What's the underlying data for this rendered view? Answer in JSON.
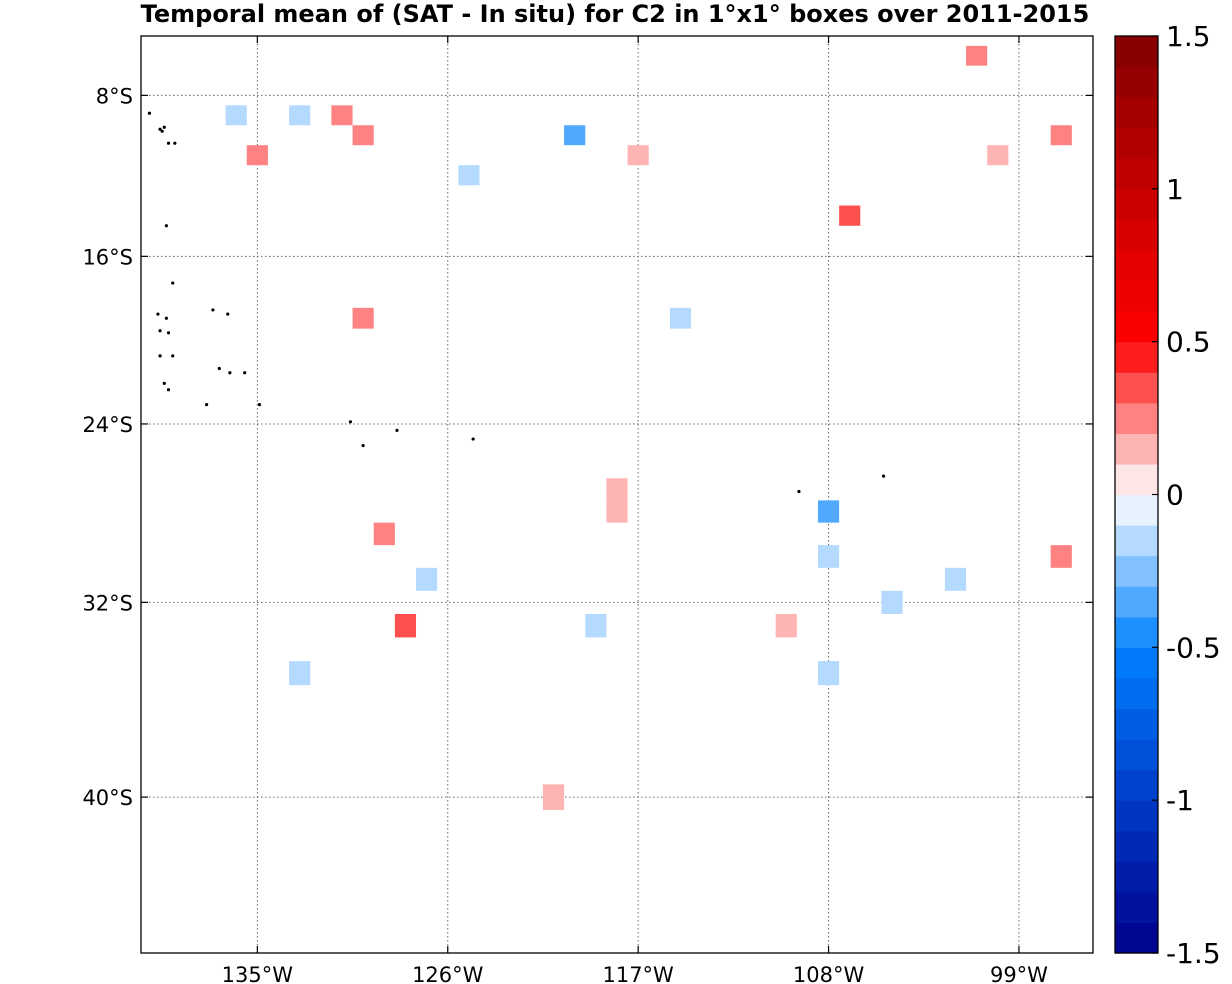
{
  "chart_data": {
    "type": "heatmap",
    "title": "Temporal mean of (SAT - In situ) for C2 in 1°x1° boxes over 2011-2015",
    "xlabel": "",
    "ylabel": "",
    "xlim": [
      -140.5,
      -95.5
    ],
    "ylim": [
      -45.8,
      -5
    ],
    "x_ticks": [
      -135,
      -126,
      -117,
      -108,
      -99
    ],
    "x_tick_labels": [
      "135°W",
      "126°W",
      "117°W",
      "108°W",
      "99°W"
    ],
    "y_ticks": [
      -8,
      -16,
      -24,
      -32,
      -40
    ],
    "y_tick_labels": [
      "8°S",
      "16°S",
      "24°S",
      "32°S",
      "40°S"
    ],
    "grid": true,
    "colorbar": {
      "min": -1.5,
      "max": 1.5,
      "levels": 30,
      "ticks": [
        -1.5,
        -1,
        -0.5,
        0,
        0.5,
        1,
        1.5
      ],
      "tick_labels": [
        "-1.5",
        "-1",
        "-0.5",
        "0",
        "0.5",
        "1",
        "1.5"
      ],
      "placement": "right"
    },
    "cells": [
      {
        "lon": -136,
        "lat": -9,
        "value": -0.15
      },
      {
        "lon": -133,
        "lat": -9,
        "value": -0.15
      },
      {
        "lon": -131,
        "lat": -9,
        "value": 0.2
      },
      {
        "lon": -130,
        "lat": -10,
        "value": 0.2
      },
      {
        "lon": -135,
        "lat": -11,
        "value": 0.2
      },
      {
        "lon": -120,
        "lat": -10,
        "value": -0.35
      },
      {
        "lon": -117,
        "lat": -11,
        "value": 0.15
      },
      {
        "lon": -125,
        "lat": -12,
        "value": -0.15
      },
      {
        "lon": -107,
        "lat": -14,
        "value": 0.3
      },
      {
        "lon": -101,
        "lat": -6,
        "value": 0.2
      },
      {
        "lon": -97,
        "lat": -10,
        "value": 0.2
      },
      {
        "lon": -100,
        "lat": -11,
        "value": 0.15
      },
      {
        "lon": -130,
        "lat": -19,
        "value": 0.2
      },
      {
        "lon": -115,
        "lat": -19,
        "value": -0.2
      },
      {
        "lon": -118,
        "lat": -27,
        "value": 0.15
      },
      {
        "lon": -118,
        "lat": -28,
        "value": 0.15
      },
      {
        "lon": -129,
        "lat": -29,
        "value": 0.2
      },
      {
        "lon": -127,
        "lat": -31,
        "value": -0.15
      },
      {
        "lon": -108,
        "lat": -28,
        "value": -0.3
      },
      {
        "lon": -108,
        "lat": -30,
        "value": -0.1
      },
      {
        "lon": -97,
        "lat": -30,
        "value": 0.2
      },
      {
        "lon": -102,
        "lat": -31,
        "value": -0.15
      },
      {
        "lon": -105,
        "lat": -32,
        "value": -0.15
      },
      {
        "lon": -128,
        "lat": -33,
        "value": 0.3
      },
      {
        "lon": -119,
        "lat": -33,
        "value": -0.15
      },
      {
        "lon": -110,
        "lat": -33,
        "value": 0.15
      },
      {
        "lon": -133,
        "lat": -35,
        "value": -0.15
      },
      {
        "lon": -108,
        "lat": -35,
        "value": -0.1
      },
      {
        "lon": -121,
        "lat": -40,
        "value": 0.15
      }
    ],
    "islands": [
      {
        "lon": -140.1,
        "lat": -8.9
      },
      {
        "lon": -139.6,
        "lat": -9.7
      },
      {
        "lon": -139.5,
        "lat": -9.8
      },
      {
        "lon": -139.4,
        "lat": -9.6
      },
      {
        "lon": -139.2,
        "lat": -10.4
      },
      {
        "lon": -138.9,
        "lat": -10.4
      },
      {
        "lon": -139.3,
        "lat": -14.5
      },
      {
        "lon": -139.0,
        "lat": -17.3
      },
      {
        "lon": -139.7,
        "lat": -18.8
      },
      {
        "lon": -139.3,
        "lat": -19.0
      },
      {
        "lon": -137.1,
        "lat": -18.6
      },
      {
        "lon": -136.4,
        "lat": -18.8
      },
      {
        "lon": -139.6,
        "lat": -19.6
      },
      {
        "lon": -139.2,
        "lat": -19.7
      },
      {
        "lon": -139.6,
        "lat": -20.8
      },
      {
        "lon": -139.0,
        "lat": -20.8
      },
      {
        "lon": -136.8,
        "lat": -21.4
      },
      {
        "lon": -136.3,
        "lat": -21.6
      },
      {
        "lon": -135.6,
        "lat": -21.6
      },
      {
        "lon": -139.4,
        "lat": -22.1
      },
      {
        "lon": -139.2,
        "lat": -22.4
      },
      {
        "lon": -137.4,
        "lat": -23.1
      },
      {
        "lon": -134.9,
        "lat": -23.1
      },
      {
        "lon": -130.6,
        "lat": -23.9
      },
      {
        "lon": -130.0,
        "lat": -25.0
      },
      {
        "lon": -128.4,
        "lat": -24.3
      },
      {
        "lon": -124.8,
        "lat": -24.7
      },
      {
        "lon": -109.4,
        "lat": -27.1
      },
      {
        "lon": -105.4,
        "lat": -26.4
      }
    ]
  }
}
